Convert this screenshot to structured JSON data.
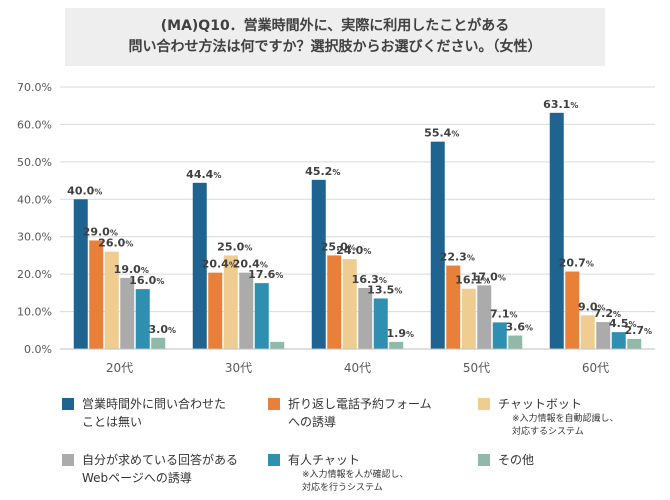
{
  "title": {
    "line1": "(MA)Q10．営業時間外に、実際に利用したことがある",
    "line2": "問い合わせ方法は何ですか？選択肢からお選びください。（女性）"
  },
  "chart_data": {
    "type": "bar",
    "title": "(MA)Q10．営業時間外に、実際に利用したことがある問い合わせ方法は何ですか？選択肢からお選びください。（女性）",
    "categories": [
      "20代",
      "30代",
      "40代",
      "50代",
      "60代"
    ],
    "ylim": [
      0,
      70
    ],
    "yticks": [
      "0.0%",
      "10.0%",
      "20.0%",
      "30.0%",
      "40.0%",
      "50.0%",
      "60.0%",
      "70.0%"
    ],
    "grid": true,
    "legend_position": "bottom",
    "series": [
      {
        "name": "営業時間外に問い合わせたことは無い",
        "color": "#1f6391",
        "values": [
          40.0,
          44.4,
          45.2,
          55.4,
          63.1
        ]
      },
      {
        "name": "折り返し電話予約フォームへの誘導",
        "color": "#e8803a",
        "values": [
          29.0,
          20.4,
          25.0,
          22.3,
          20.7
        ]
      },
      {
        "name": "チャットボット",
        "color": "#efcc8f",
        "values": [
          26.0,
          25.0,
          24.0,
          16.1,
          9.0
        ]
      },
      {
        "name": "自分が求めている回答があるWebページへの誘導",
        "color": "#ababab",
        "values": [
          19.0,
          20.4,
          16.3,
          17.0,
          7.2
        ]
      },
      {
        "name": "有人チャット",
        "color": "#2f8fb0",
        "values": [
          16.0,
          17.6,
          13.5,
          7.1,
          4.5
        ]
      },
      {
        "name": "その他",
        "color": "#8fb9a8",
        "values": [
          3.0,
          1.9,
          1.9,
          3.6,
          2.7
        ]
      }
    ],
    "value_labels": [
      [
        "40.0",
        "44.4",
        "45.2",
        "55.4",
        "63.1"
      ],
      [
        "29.0",
        "20.4",
        "25.0",
        "22.3",
        "20.7"
      ],
      [
        "26.0",
        "25.0",
        "24.0",
        "16.1",
        "9.0"
      ],
      [
        "19.0",
        "20.4",
        "16.3",
        "17.0",
        "7.2"
      ],
      [
        "16.0",
        "17.6",
        "13.5",
        "7.1",
        "4.5"
      ],
      [
        "3.0",
        "",
        "1.9",
        "3.6",
        "2.7"
      ]
    ],
    "label_suffix": "%"
  },
  "legend": [
    {
      "line1": "営業時間外に問い合わせた",
      "line2": "ことは無い",
      "note1": "",
      "note2": ""
    },
    {
      "line1": "折り返し電話予約フォーム",
      "line2": "への誘導",
      "note1": "",
      "note2": ""
    },
    {
      "line1": "チャットボット",
      "line2": "",
      "note1": "※入力情報を自動認識し、",
      "note2": "対応するシステム"
    },
    {
      "line1": "自分が求めている回答がある",
      "line2": "Webページへの誘導",
      "note1": "",
      "note2": ""
    },
    {
      "line1": "有人チャット",
      "line2": "",
      "note1": "※入力情報を人が確認し、",
      "note2": "対応を行うシステム"
    },
    {
      "line1": "その他",
      "line2": "",
      "note1": "",
      "note2": ""
    }
  ]
}
